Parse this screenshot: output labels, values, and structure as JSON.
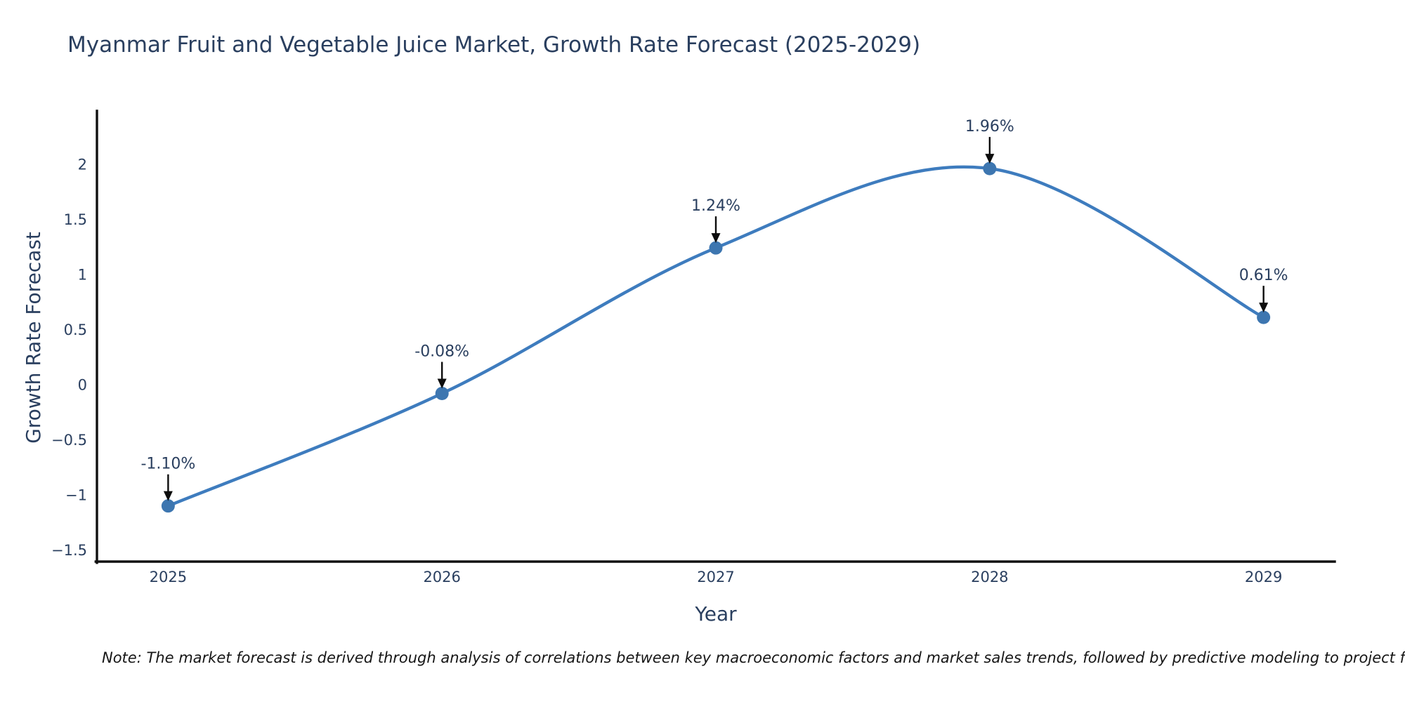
{
  "chart_data": {
    "type": "line",
    "title": "Myanmar Fruit and Vegetable Juice Market, Growth Rate Forecast (2025-2029)",
    "xlabel": "Year",
    "ylabel": "Growth Rate Forecast",
    "x": [
      2025,
      2026,
      2027,
      2028,
      2029
    ],
    "values": [
      -1.1,
      -0.08,
      1.24,
      1.96,
      0.61
    ],
    "point_labels": [
      "-1.10%",
      "-0.08%",
      "1.24%",
      "1.96%",
      "0.61%"
    ],
    "yticks": [
      2,
      1.5,
      1,
      0.5,
      0,
      -0.5,
      -1,
      -1.5
    ],
    "xlim": [
      2024.74,
      2029.26
    ],
    "ylim": [
      -1.605,
      2.47
    ],
    "line_shape": "spline",
    "grid": false,
    "legend": false
  },
  "footnote": "Note: The market forecast is derived through analysis of correlations between key macroeconomic factors and market sales trends, followed by predictive modeling to project future sales.",
  "colors": {
    "title_text": "#2a3f5f",
    "axis_text": "#2a3f5f",
    "annotation_text": "#2a3f5f",
    "line": "#3e7cbe",
    "marker": "#3d76b0",
    "axis_line": "#111111",
    "arrow": "#0d0d0d",
    "note_text": "#161616",
    "background": "#ffffff"
  }
}
